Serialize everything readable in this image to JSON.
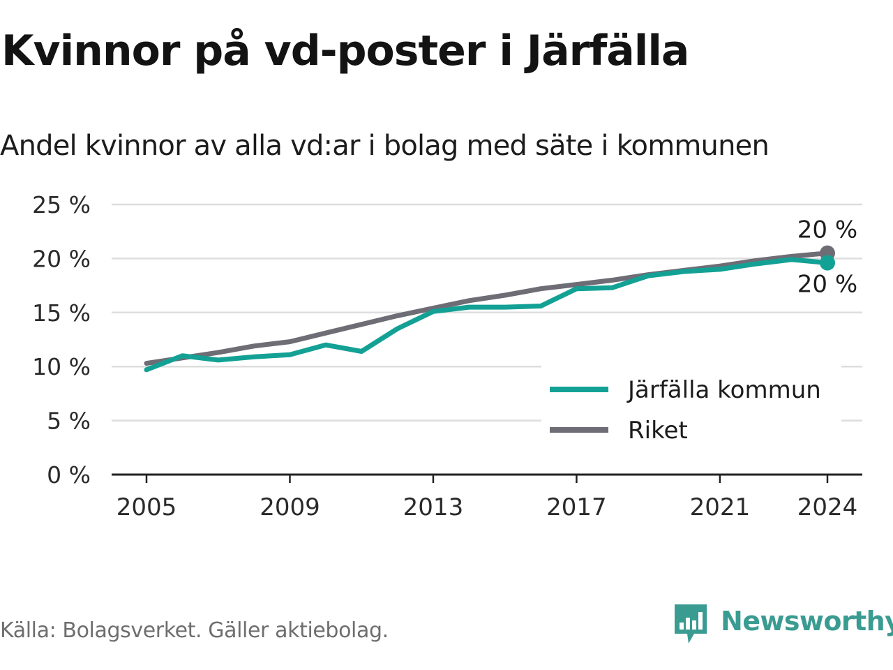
{
  "title": "Kvinnor på vd-poster i Järfälla",
  "subtitle": "Andel kvinnor av alla vd:ar i bolag med säte i kommunen",
  "source": "Källa: Bolagsverket. Gäller aktiebolag.",
  "brand": "Newsworthy",
  "colors": {
    "accent": "#13a195",
    "secondary": "#6e6d76",
    "grid": "#dddddd",
    "axis": "#222222",
    "brand": "#3a9b91"
  },
  "chart_data": {
    "type": "line",
    "x": [
      2005,
      2006,
      2007,
      2008,
      2009,
      2010,
      2011,
      2012,
      2013,
      2014,
      2015,
      2016,
      2017,
      2018,
      2019,
      2020,
      2021,
      2022,
      2023,
      2024
    ],
    "xticks": [
      "2005",
      "2009",
      "2013",
      "2017",
      "2021",
      "2024"
    ],
    "yticks": [
      "0 %",
      "5 %",
      "10 %",
      "15 %",
      "20 %",
      "25 %"
    ],
    "ylim": [
      0,
      25
    ],
    "grid": true,
    "legend_position": "bottom-right",
    "series": [
      {
        "name": "Järfälla kommun",
        "color": "#13a195",
        "values": [
          9.7,
          11.0,
          10.6,
          10.9,
          11.1,
          12.0,
          11.4,
          13.5,
          15.1,
          15.5,
          15.5,
          15.6,
          17.2,
          17.3,
          18.4,
          18.8,
          19.0,
          19.5,
          19.9,
          19.6
        ],
        "end_label": "20 %"
      },
      {
        "name": "Riket",
        "color": "#6e6d76",
        "values": [
          10.3,
          10.8,
          11.3,
          11.9,
          12.3,
          13.1,
          13.9,
          14.7,
          15.4,
          16.1,
          16.6,
          17.2,
          17.6,
          18.0,
          18.5,
          18.9,
          19.3,
          19.8,
          20.2,
          20.5
        ],
        "end_label": "20 %"
      }
    ]
  }
}
